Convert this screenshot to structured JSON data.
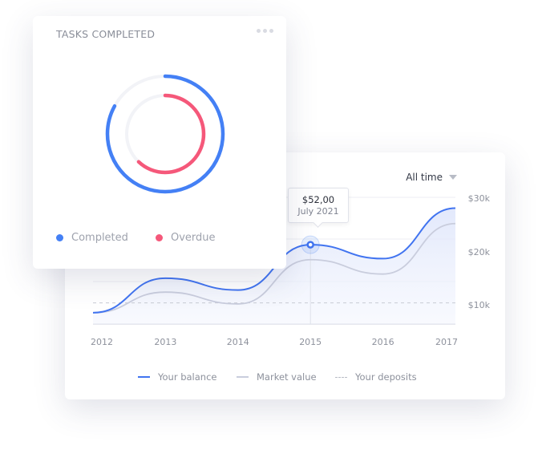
{
  "tasks_card": {
    "title": "TASKS COMPLETED",
    "menu_icon": "more-horizontal-icon",
    "rings": [
      {
        "name": "Completed",
        "fraction": 0.83,
        "color": "#4480f5"
      },
      {
        "name": "Overdue",
        "fraction": 0.62,
        "color": "#f5587a"
      }
    ],
    "track_color": "#f2f3f7",
    "legend": [
      {
        "label": "Completed",
        "color": "#4480f5"
      },
      {
        "label": "Overdue",
        "color": "#f5587a"
      }
    ]
  },
  "chart_card": {
    "range_select": {
      "value": "All time",
      "icon": "caret-down-icon"
    },
    "tooltip": {
      "value": "$52,00",
      "date": "July 2021"
    }
  },
  "chart_data": {
    "type": "line",
    "x": [
      "2012",
      "2013",
      "2014",
      "2015",
      "2016",
      "2017"
    ],
    "y_ticks": [
      "$10k",
      "$20k",
      "$30k"
    ],
    "y_tick_values": [
      10,
      20,
      30
    ],
    "ylim": [
      6.4,
      31
    ],
    "grid": true,
    "legend_position": "bottom",
    "highlight_index": 3,
    "series": [
      {
        "name": "Your balance",
        "values": [
          8.6,
          15.3,
          13.0,
          21.8,
          19.1,
          28.9
        ],
        "color": "#4174f0",
        "style": "solid"
      },
      {
        "name": "Market value",
        "values": [
          8.6,
          12.6,
          10.3,
          18.9,
          16.1,
          25.9
        ],
        "color": "#c9cddd",
        "style": "solid"
      },
      {
        "name": "Your deposits",
        "values": [
          10.5,
          10.5,
          10.5,
          10.5,
          10.5,
          10.5
        ],
        "color": "#c9ccd5",
        "style": "dashed"
      }
    ]
  }
}
